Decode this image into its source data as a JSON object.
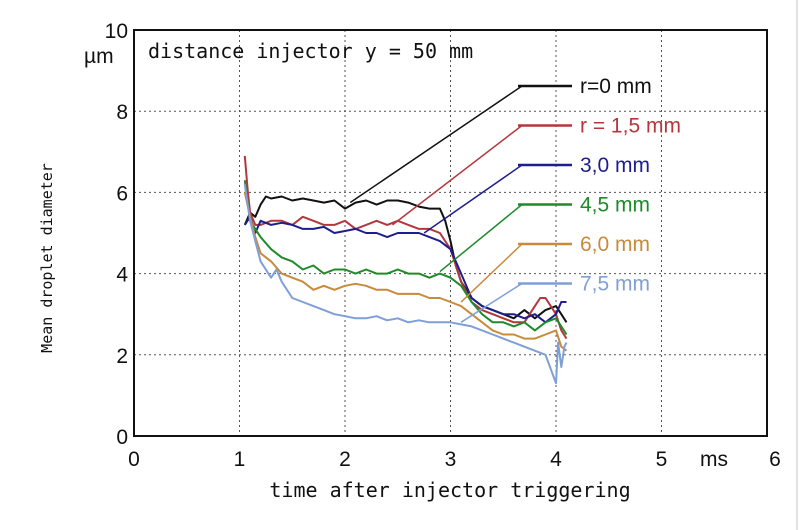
{
  "chart_data": {
    "type": "line",
    "title": "distance injector y = 50 mm",
    "xlabel": "time after injector triggering",
    "x_unit": "ms",
    "ylabel": "Mean droplet diameter",
    "y_unit": "µm",
    "xlim": [
      0,
      6
    ],
    "ylim": [
      0,
      10
    ],
    "x_ticks": [
      "0",
      "1",
      "2",
      "3",
      "4",
      "5",
      "6"
    ],
    "y_ticks": [
      "0",
      "2",
      "4",
      "6",
      "8",
      "10"
    ],
    "grid": true,
    "legend_position": "top-right",
    "series": [
      {
        "name": "r=0 mm",
        "color": "#111111",
        "x": [
          1.05,
          1.1,
          1.15,
          1.2,
          1.25,
          1.3,
          1.4,
          1.5,
          1.6,
          1.7,
          1.8,
          1.9,
          2.0,
          2.1,
          2.2,
          2.3,
          2.4,
          2.5,
          2.6,
          2.7,
          2.8,
          2.9,
          2.95,
          3.0,
          3.05,
          3.1,
          3.2,
          3.3,
          3.4,
          3.5,
          3.6,
          3.7,
          3.8,
          3.9,
          4.0,
          4.05,
          4.1
        ],
        "y": [
          5.2,
          5.5,
          5.4,
          5.7,
          5.9,
          5.85,
          5.9,
          5.8,
          5.85,
          5.8,
          5.75,
          5.8,
          5.6,
          5.75,
          5.8,
          5.7,
          5.8,
          5.8,
          5.75,
          5.65,
          5.6,
          5.6,
          5.3,
          4.8,
          4.2,
          3.8,
          3.4,
          3.2,
          3.1,
          3.0,
          2.9,
          3.1,
          2.9,
          3.1,
          3.2,
          3.0,
          2.8
        ]
      },
      {
        "name": "r = 1,5 mm",
        "color": "#b3373c",
        "x": [
          1.05,
          1.08,
          1.1,
          1.15,
          1.2,
          1.3,
          1.4,
          1.5,
          1.6,
          1.7,
          1.8,
          1.9,
          2.0,
          2.1,
          2.2,
          2.3,
          2.4,
          2.5,
          2.6,
          2.7,
          2.8,
          2.9,
          3.0,
          3.1,
          3.2,
          3.3,
          3.4,
          3.5,
          3.6,
          3.7,
          3.8,
          3.85,
          3.9,
          4.0,
          4.05,
          4.1
        ],
        "y": [
          6.9,
          6.0,
          5.5,
          5.2,
          5.2,
          5.3,
          5.3,
          5.2,
          5.4,
          5.3,
          5.2,
          5.2,
          5.3,
          5.1,
          5.2,
          5.3,
          5.2,
          5.3,
          5.2,
          5.1,
          5.1,
          5.0,
          4.6,
          3.8,
          3.3,
          3.1,
          3.0,
          2.9,
          2.8,
          2.8,
          3.2,
          3.4,
          3.4,
          3.0,
          2.6,
          2.4
        ]
      },
      {
        "name": "3,0 mm",
        "color": "#1e1e8c",
        "x": [
          1.05,
          1.1,
          1.15,
          1.2,
          1.3,
          1.4,
          1.5,
          1.6,
          1.7,
          1.8,
          1.9,
          2.0,
          2.1,
          2.2,
          2.3,
          2.4,
          2.5,
          2.6,
          2.7,
          2.8,
          2.9,
          3.0,
          3.1,
          3.2,
          3.3,
          3.4,
          3.5,
          3.6,
          3.7,
          3.8,
          3.9,
          4.0,
          4.05,
          4.1
        ],
        "y": [
          5.2,
          5.4,
          5.0,
          5.3,
          5.2,
          5.25,
          5.2,
          5.1,
          5.1,
          5.15,
          5.0,
          5.05,
          5.1,
          5.0,
          5.0,
          4.9,
          5.0,
          5.0,
          5.0,
          4.9,
          4.8,
          4.6,
          4.0,
          3.4,
          3.2,
          3.1,
          3.0,
          3.0,
          2.9,
          3.0,
          2.8,
          3.0,
          3.3,
          3.3
        ]
      },
      {
        "name": "4,5 mm",
        "color": "#1f8a2a",
        "x": [
          1.05,
          1.1,
          1.15,
          1.2,
          1.3,
          1.4,
          1.5,
          1.6,
          1.7,
          1.8,
          1.9,
          2.0,
          2.1,
          2.2,
          2.3,
          2.4,
          2.5,
          2.6,
          2.7,
          2.8,
          2.9,
          3.0,
          3.1,
          3.2,
          3.3,
          3.4,
          3.5,
          3.6,
          3.7,
          3.8,
          3.9,
          4.0,
          4.05,
          4.1
        ],
        "y": [
          6.3,
          5.3,
          5.1,
          4.9,
          4.6,
          4.4,
          4.3,
          4.1,
          4.2,
          4.0,
          4.1,
          4.1,
          4.0,
          4.1,
          4.0,
          4.0,
          4.1,
          4.0,
          4.0,
          3.9,
          4.0,
          3.9,
          3.7,
          3.3,
          3.0,
          2.8,
          2.8,
          2.7,
          2.8,
          2.6,
          2.8,
          2.9,
          2.7,
          2.5
        ]
      },
      {
        "name": "6,0 mm",
        "color": "#c88a3c",
        "x": [
          1.05,
          1.1,
          1.15,
          1.2,
          1.3,
          1.4,
          1.5,
          1.6,
          1.7,
          1.8,
          1.9,
          2.0,
          2.1,
          2.2,
          2.3,
          2.4,
          2.5,
          2.6,
          2.7,
          2.8,
          2.9,
          3.0,
          3.1,
          3.2,
          3.3,
          3.4,
          3.5,
          3.6,
          3.7,
          3.8,
          3.9,
          4.0,
          4.05,
          4.1
        ],
        "y": [
          6.0,
          5.4,
          4.9,
          4.5,
          4.3,
          4.0,
          3.9,
          3.8,
          3.6,
          3.7,
          3.6,
          3.7,
          3.75,
          3.7,
          3.6,
          3.6,
          3.5,
          3.5,
          3.5,
          3.4,
          3.4,
          3.3,
          3.2,
          3.0,
          2.8,
          2.6,
          2.5,
          2.5,
          2.4,
          2.4,
          2.5,
          2.6,
          2.2,
          2.1
        ]
      },
      {
        "name": "7,5 mm",
        "color": "#7f9fd6",
        "x": [
          1.05,
          1.1,
          1.15,
          1.2,
          1.3,
          1.35,
          1.4,
          1.5,
          1.6,
          1.7,
          1.8,
          1.9,
          2.0,
          2.1,
          2.2,
          2.3,
          2.4,
          2.5,
          2.6,
          2.7,
          2.8,
          2.9,
          3.0,
          3.1,
          3.2,
          3.3,
          3.4,
          3.5,
          3.6,
          3.7,
          3.8,
          3.9,
          4.0,
          4.02,
          4.05,
          4.08,
          4.1
        ],
        "y": [
          6.2,
          5.3,
          4.8,
          4.3,
          3.9,
          4.1,
          3.8,
          3.4,
          3.3,
          3.2,
          3.1,
          3.0,
          2.95,
          2.9,
          2.9,
          2.95,
          2.85,
          2.9,
          2.8,
          2.85,
          2.8,
          2.8,
          2.8,
          2.75,
          2.7,
          2.6,
          2.5,
          2.4,
          2.3,
          2.2,
          2.1,
          2.0,
          1.3,
          2.3,
          1.7,
          2.2,
          2.3
        ]
      }
    ]
  }
}
